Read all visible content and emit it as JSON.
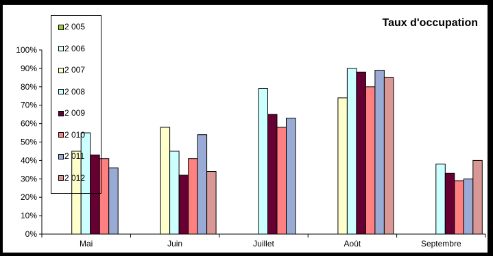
{
  "chart_data": {
    "type": "bar",
    "title": "Taux d'occupation",
    "xlabel": "",
    "ylabel": "",
    "categories": [
      "Mai",
      "Juin",
      "Juillet",
      "Août",
      "Septembre"
    ],
    "ylim": [
      0,
      100
    ],
    "yticks": [
      "0%",
      "10%",
      "20%",
      "30%",
      "40%",
      "50%",
      "60%",
      "70%",
      "80%",
      "90%",
      "100%"
    ],
    "grid": false,
    "legend_position": "top-left",
    "series": [
      {
        "name": "2 005",
        "color": "#9ACD32",
        "values": [
          null,
          null,
          null,
          null,
          null
        ]
      },
      {
        "name": "2 006",
        "color": "#DDFDFF",
        "values": [
          null,
          null,
          null,
          null,
          null
        ]
      },
      {
        "name": "2 007",
        "color": "#FFFFCC",
        "values": [
          45,
          58,
          null,
          74,
          null
        ]
      },
      {
        "name": "2 008",
        "color": "#CCFFFF",
        "values": [
          55,
          45,
          79,
          90,
          38
        ]
      },
      {
        "name": "2 009",
        "color": "#660033",
        "values": [
          43,
          32,
          65,
          88,
          33
        ]
      },
      {
        "name": "2 010",
        "color": "#FF8080",
        "values": [
          41,
          41,
          58,
          80,
          29
        ]
      },
      {
        "name": "2 011",
        "color": "#99AAD5",
        "values": [
          36,
          54,
          63,
          89,
          30
        ]
      },
      {
        "name": "2 012",
        "color": "#D99795",
        "values": [
          null,
          34,
          null,
          85,
          40
        ]
      }
    ]
  }
}
